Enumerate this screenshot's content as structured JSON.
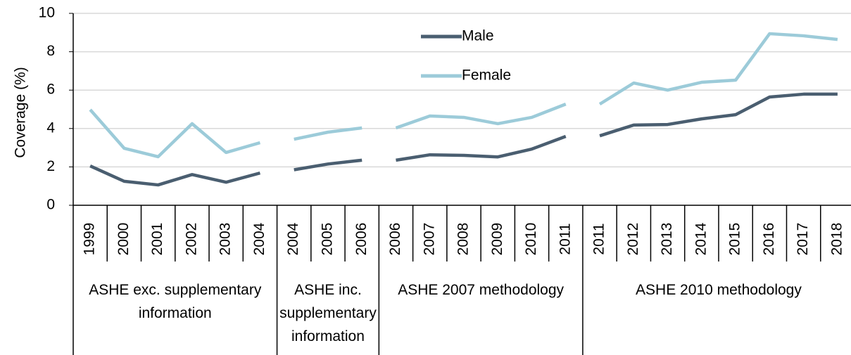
{
  "chart_data": {
    "type": "line",
    "y_label": "Coverage (%)",
    "ylim": [
      0,
      10
    ],
    "yticks": [
      0,
      2,
      4,
      6,
      8,
      10
    ],
    "grid": true,
    "legend": "top-center",
    "groups": [
      {
        "label": "ASHE exc. supplementary information",
        "categories": [
          "1999",
          "2000",
          "2001",
          "2002",
          "2003",
          "2004"
        ]
      },
      {
        "label": "ASHE inc. supplementary information",
        "categories": [
          "2004",
          "2005",
          "2006"
        ]
      },
      {
        "label": "ASHE 2007 methodology",
        "categories": [
          "2006",
          "2007",
          "2008",
          "2009",
          "2010",
          "2011"
        ]
      },
      {
        "label": "ASHE 2010 methodology",
        "categories": [
          "2011",
          "2012",
          "2013",
          "2014",
          "2015",
          "2016",
          "2017",
          "2018"
        ]
      }
    ],
    "series": [
      {
        "name": "Male",
        "color": "#4a5e70",
        "values": [
          [
            2.05,
            1.25,
            1.06,
            1.6,
            1.2,
            1.68
          ],
          [
            1.85,
            2.15,
            2.35
          ],
          [
            2.35,
            2.63,
            2.6,
            2.52,
            2.93,
            3.59
          ],
          [
            3.62,
            4.18,
            4.21,
            4.5,
            4.72,
            5.64,
            5.79,
            5.79
          ]
        ]
      },
      {
        "name": "Female",
        "color": "#9ccbd9",
        "values": [
          [
            4.98,
            2.97,
            2.53,
            4.25,
            2.75,
            3.26
          ],
          [
            3.44,
            3.81,
            4.03
          ],
          [
            4.03,
            4.65,
            4.58,
            4.25,
            4.58,
            5.27
          ],
          [
            5.27,
            6.37,
            6.0,
            6.41,
            6.52,
            8.94,
            8.83,
            8.64
          ]
        ]
      }
    ]
  }
}
